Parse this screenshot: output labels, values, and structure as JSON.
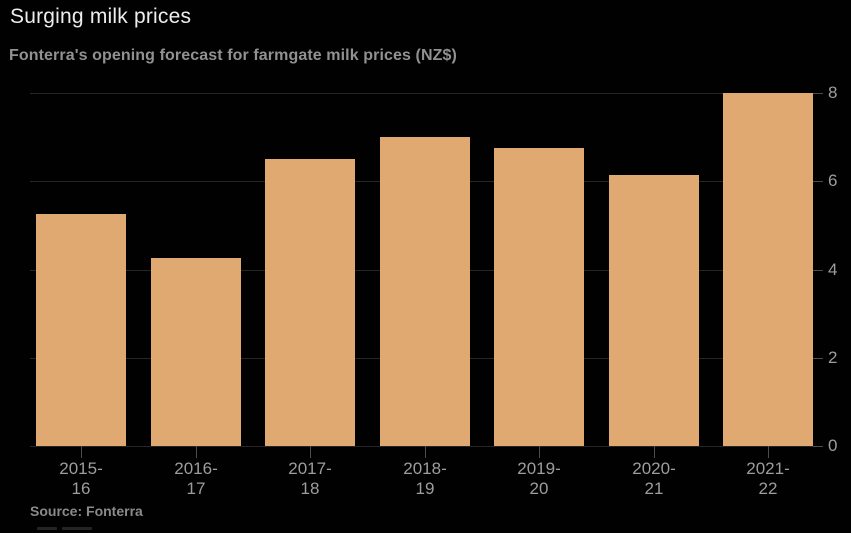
{
  "header": {
    "title": "Surging milk prices",
    "subtitle": "Fonterra's opening forecast for farmgate milk prices (NZ$)"
  },
  "footer": {
    "source": "Source: Fonterra"
  },
  "chart_data": {
    "type": "bar",
    "title": "Surging milk prices",
    "subtitle": "Fonterra's opening forecast for farmgate milk prices (NZ$)",
    "categories": [
      "2015-16",
      "2016-17",
      "2017-18",
      "2018-19",
      "2019-20",
      "2020-21",
      "2021-22"
    ],
    "category_label_lines": [
      [
        "2015-",
        "16"
      ],
      [
        "2016-",
        "17"
      ],
      [
        "2017-",
        "18"
      ],
      [
        "2018-",
        "19"
      ],
      [
        "2019-",
        "20"
      ],
      [
        "2020-",
        "21"
      ],
      [
        "2021-",
        "22"
      ]
    ],
    "values": [
      5.25,
      4.25,
      6.5,
      7.0,
      6.75,
      6.15,
      8.0
    ],
    "unit": "NZ$",
    "xlabel": "",
    "ylabel": "",
    "ylim": [
      0,
      8
    ],
    "yticks": [
      0,
      2,
      4,
      6,
      8
    ],
    "y_axis_side": "right",
    "grid": true,
    "legend": "none",
    "source": "Source: Fonterra",
    "colors": {
      "background": "#010101",
      "bar": "#e0a971",
      "gridline": "#262626",
      "tick": "#4d4d4d",
      "axis_label": "#9d9d9d",
      "title": "#ededed",
      "subtitle": "#919191",
      "source": "#8a8a8a"
    }
  }
}
